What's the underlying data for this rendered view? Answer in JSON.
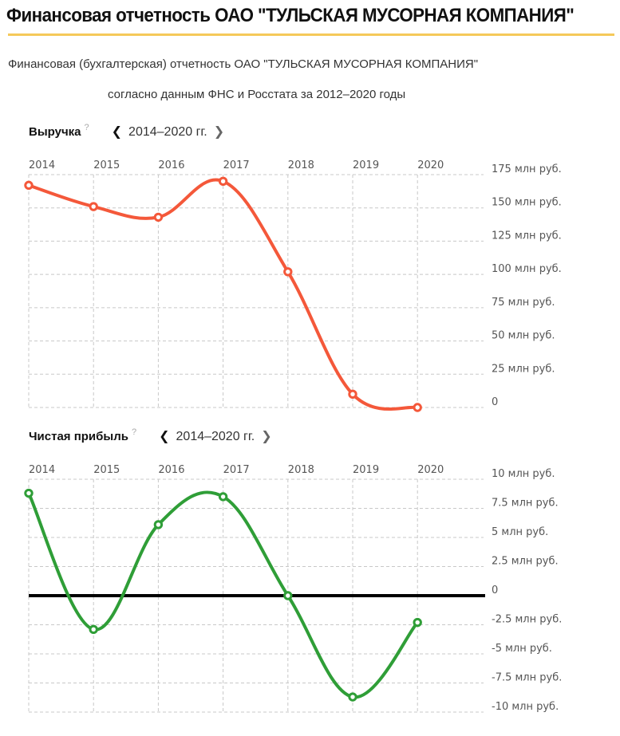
{
  "header": {
    "title": "Финансовая отчетность ОАО \"ТУЛЬСКАЯ МУСОРНАЯ КОМПАНИЯ\"",
    "subtitle_line1": "Финансовая (бухгалтерская) отчетность ОАО \"ТУЛЬСКАЯ МУСОРНАЯ КОМПАНИЯ\"",
    "subtitle_line2": "согласно данным ФНС и Росстата за 2012–2020 годы",
    "accent_color": "#f5c95a"
  },
  "charts": [
    {
      "title": "Выручка",
      "help": "?",
      "prev_icon": "chevron-left-icon",
      "next_icon": "chevron-right-icon",
      "period": "2014–2020 гг."
    },
    {
      "title": "Чистая прибыль",
      "help": "?",
      "prev_icon": "chevron-left-icon",
      "next_icon": "chevron-right-icon",
      "period": "2014–2020 гг."
    }
  ],
  "chart_data": [
    {
      "type": "line",
      "title": "Выручка",
      "xlabel": "",
      "ylabel": "",
      "categories": [
        "2014",
        "2015",
        "2016",
        "2017",
        "2018",
        "2019",
        "2020"
      ],
      "series": [
        {
          "name": "Выручка",
          "color": "#f4583a",
          "values": [
            167,
            151,
            143,
            170,
            102,
            10,
            0
          ]
        }
      ],
      "unit": "млн руб.",
      "ylim": [
        0,
        175
      ],
      "yticks": [
        175,
        150,
        125,
        100,
        75,
        50,
        25,
        0
      ],
      "ytick_labels": [
        "175 млн руб.",
        "150 млн руб.",
        "125 млн руб.",
        "100 млн руб.",
        "75 млн руб.",
        "50 млн руб.",
        "25 млн руб.",
        "0"
      ],
      "grid": true,
      "legend": "none",
      "y_axis_side": "right"
    },
    {
      "type": "line",
      "title": "Чистая прибыль",
      "xlabel": "",
      "ylabel": "",
      "categories": [
        "2014",
        "2015",
        "2016",
        "2017",
        "2018",
        "2019",
        "2020"
      ],
      "series": [
        {
          "name": "Чистая прибыль",
          "color": "#2f9e37",
          "values": [
            8.8,
            -2.9,
            6.1,
            8.5,
            0,
            -8.7,
            -2.3
          ]
        }
      ],
      "unit": "млн руб.",
      "ylim": [
        -10,
        10
      ],
      "yticks": [
        10,
        7.5,
        5,
        2.5,
        0,
        -2.5,
        -5,
        -7.5,
        -10
      ],
      "ytick_labels": [
        "10 млн руб.",
        "7.5 млн руб.",
        "5 млн руб.",
        "2.5 млн руб.",
        "0",
        "-2.5 млн руб.",
        "-5 млн руб.",
        "-7.5 млн руб.",
        "-10 млн руб."
      ],
      "zero_line": true,
      "zero_line_color": "#000000",
      "grid": true,
      "legend": "none",
      "y_axis_side": "right"
    }
  ]
}
